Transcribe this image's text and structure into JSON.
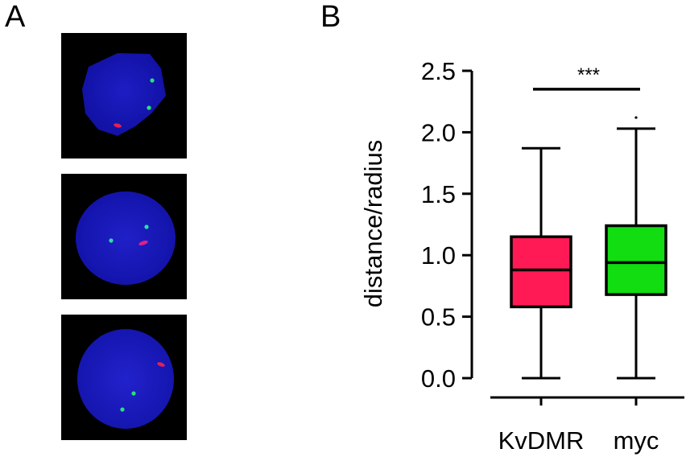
{
  "panels": {
    "a_label": "A",
    "b_label": "B"
  },
  "micrographs": [
    {
      "name": "nucleus-image-1",
      "nucleus_color": "#1515b4",
      "green_spots": 2,
      "red_spots": 1
    },
    {
      "name": "nucleus-image-2",
      "nucleus_color": "#1818b8",
      "green_spots": 2,
      "red_spots": 1
    },
    {
      "name": "nucleus-image-3",
      "nucleus_color": "#1a1ac0",
      "green_spots": 2,
      "red_spots": 1
    }
  ],
  "colors": {
    "nucleus_blue": "#1818b8",
    "probe_green": "#22e070",
    "probe_red": "#e0205a",
    "kvdmr_box": "#ff1a55",
    "myc_box": "#11dd11"
  },
  "chart_data": {
    "type": "box",
    "ylabel": "distance/radius",
    "ylim": [
      0,
      2.5
    ],
    "yticks": [
      0.0,
      0.5,
      1.0,
      1.5,
      2.0,
      2.5
    ],
    "ytick_labels": [
      "0.0",
      "0.5",
      "1.0",
      "1.5",
      "2.0",
      "2.5"
    ],
    "categories": [
      "KvDMR",
      "myc"
    ],
    "boxes": [
      {
        "category": "KvDMR",
        "min": 0.0,
        "q1": 0.58,
        "median": 0.88,
        "q3": 1.15,
        "max": 1.87,
        "color": "#ff1a55"
      },
      {
        "category": "myc",
        "min": 0.0,
        "q1": 0.68,
        "median": 0.94,
        "q3": 1.24,
        "max": 2.03,
        "color": "#11dd11"
      }
    ],
    "outliers": [
      {
        "category": "myc",
        "value": 2.12
      }
    ],
    "significance": {
      "between": [
        "KvDMR",
        "myc"
      ],
      "label": "***",
      "y": 2.35
    },
    "grid": false
  }
}
